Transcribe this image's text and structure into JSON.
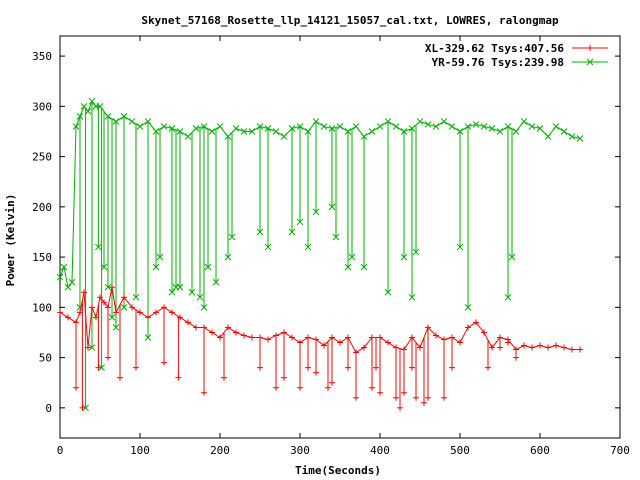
{
  "chart_data": {
    "type": "line",
    "title": "Skynet_57168_Rosette_llp_14121_15057_cal.txt, LOWRES, ralongmap",
    "xlabel": "Time(Seconds)",
    "ylabel": "Power (Kelvin)",
    "xlim": [
      0,
      700
    ],
    "ylim": [
      -30,
      370
    ],
    "x_ticks": [
      0,
      100,
      200,
      300,
      400,
      500,
      600,
      700
    ],
    "y_ticks": [
      0,
      50,
      100,
      150,
      200,
      250,
      300,
      350
    ],
    "x_tick_labels": [
      "0",
      "100",
      "200",
      "300",
      "400",
      "500",
      "600",
      "700"
    ],
    "y_tick_labels": [
      "0",
      "50",
      "100",
      "150",
      "200",
      "250",
      "300",
      "350"
    ],
    "grid": false,
    "legend_position": "top-right",
    "series": [
      {
        "name": "XL-329.62 Tsys:407.56",
        "color": "#ff0000",
        "marker": "plus",
        "x": [
          0,
          10,
          20,
          25,
          30,
          35,
          40,
          45,
          50,
          55,
          60,
          65,
          70,
          80,
          90,
          100,
          110,
          120,
          130,
          140,
          150,
          160,
          170,
          180,
          190,
          200,
          210,
          220,
          230,
          240,
          250,
          260,
          270,
          280,
          290,
          300,
          310,
          320,
          330,
          340,
          350,
          360,
          370,
          380,
          390,
          400,
          410,
          420,
          430,
          440,
          450,
          460,
          470,
          480,
          490,
          500,
          510,
          520,
          530,
          540,
          550,
          560,
          570,
          580,
          590,
          600,
          610,
          620,
          630,
          640,
          650
        ],
        "y": [
          95,
          90,
          85,
          95,
          115,
          60,
          100,
          90,
          110,
          105,
          100,
          120,
          95,
          110,
          100,
          95,
          90,
          95,
          100,
          95,
          90,
          85,
          80,
          80,
          75,
          70,
          80,
          75,
          72,
          70,
          70,
          68,
          72,
          75,
          70,
          65,
          70,
          68,
          62,
          70,
          65,
          70,
          55,
          60,
          70,
          70,
          65,
          60,
          58,
          70,
          60,
          80,
          72,
          68,
          70,
          65,
          80,
          85,
          75,
          60,
          70,
          68,
          58,
          62,
          60,
          62,
          60,
          62,
          60,
          58,
          58
        ],
        "dip_x": [
          20,
          28,
          48,
          60,
          75,
          95,
          130,
          148,
          180,
          205,
          250,
          270,
          280,
          300,
          310,
          320,
          335,
          340,
          360,
          370,
          390,
          395,
          400,
          420,
          425,
          430,
          440,
          445,
          455,
          460,
          480,
          490,
          535,
          550,
          560,
          570
        ],
        "dip_y": [
          20,
          0,
          40,
          50,
          30,
          40,
          45,
          30,
          15,
          30,
          40,
          20,
          30,
          20,
          40,
          35,
          20,
          25,
          40,
          10,
          20,
          40,
          15,
          10,
          0,
          15,
          40,
          10,
          5,
          10,
          10,
          40,
          40,
          60,
          65,
          50
        ]
      },
      {
        "name": "YR-59.76 Tsys:239.98",
        "color": "#00b000",
        "marker": "cross",
        "x": [
          0,
          5,
          10,
          15,
          20,
          25,
          30,
          35,
          40,
          45,
          50,
          60,
          70,
          80,
          90,
          100,
          110,
          120,
          130,
          140,
          150,
          160,
          170,
          180,
          190,
          200,
          210,
          220,
          230,
          240,
          250,
          260,
          270,
          280,
          290,
          300,
          310,
          320,
          330,
          340,
          350,
          360,
          370,
          380,
          390,
          400,
          410,
          420,
          430,
          440,
          450,
          460,
          470,
          480,
          490,
          500,
          510,
          520,
          530,
          540,
          550,
          560,
          570,
          580,
          590,
          600,
          610,
          620,
          630,
          640,
          650
        ],
        "y": [
          130,
          140,
          120,
          125,
          280,
          290,
          300,
          295,
          305,
          300,
          300,
          290,
          285,
          290,
          285,
          280,
          285,
          275,
          280,
          278,
          275,
          270,
          278,
          280,
          275,
          280,
          270,
          278,
          275,
          275,
          280,
          278,
          275,
          270,
          278,
          280,
          275,
          285,
          280,
          278,
          280,
          275,
          280,
          270,
          275,
          280,
          285,
          280,
          275,
          278,
          285,
          282,
          280,
          285,
          280,
          275,
          280,
          282,
          280,
          278,
          275,
          280,
          275,
          285,
          280,
          278,
          270,
          280,
          275,
          270,
          268
        ],
        "dip_x": [
          25,
          32,
          40,
          48,
          52,
          55,
          60,
          65,
          70,
          80,
          95,
          110,
          120,
          125,
          140,
          145,
          150,
          165,
          175,
          180,
          185,
          195,
          210,
          215,
          250,
          260,
          290,
          300,
          310,
          320,
          340,
          345,
          360,
          365,
          380,
          410,
          430,
          440,
          445,
          500,
          510,
          560,
          565
        ],
        "dip_y": [
          100,
          0,
          60,
          160,
          40,
          140,
          120,
          90,
          80,
          100,
          110,
          70,
          140,
          150,
          115,
          120,
          120,
          115,
          110,
          100,
          140,
          125,
          150,
          170,
          175,
          160,
          175,
          185,
          160,
          195,
          200,
          170,
          140,
          150,
          140,
          115,
          150,
          110,
          155,
          160,
          100,
          110,
          150
        ]
      }
    ]
  }
}
